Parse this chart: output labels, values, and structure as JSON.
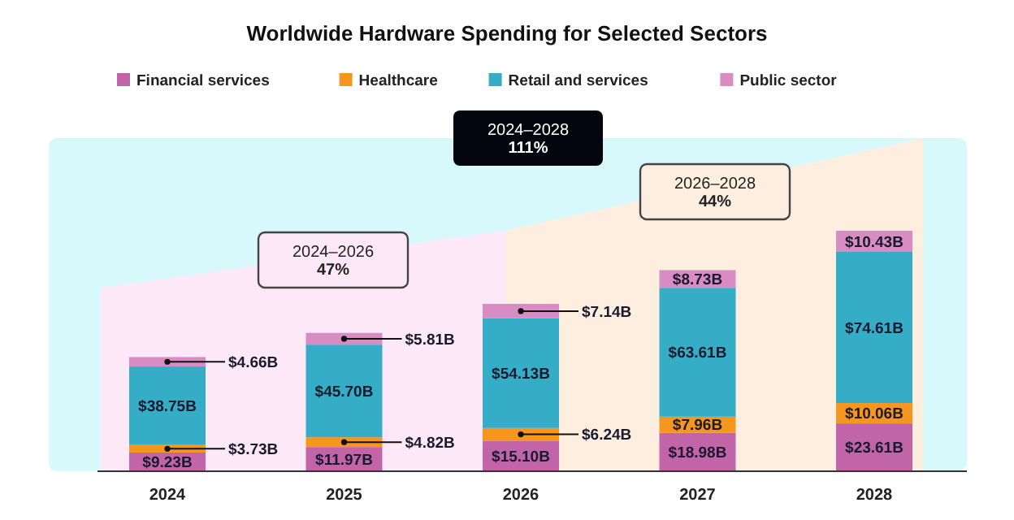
{
  "chart_data": {
    "type": "bar",
    "title": "Worldwide Hardware Spending for Selected Sectors",
    "stacked": true,
    "legend": "top",
    "categories": [
      "2024",
      "2025",
      "2026",
      "2027",
      "2028"
    ],
    "series": [
      {
        "name": "Financial services",
        "color": "#c264a8",
        "values": [
          9.23,
          11.97,
          15.1,
          18.98,
          23.61
        ],
        "value_labels": [
          "$9.23B",
          "$11.97B",
          "$15.10B",
          "$18.98B",
          "$23.61B"
        ]
      },
      {
        "name": "Healthcare",
        "color": "#f7961e",
        "values": [
          3.73,
          4.82,
          6.24,
          7.96,
          10.06
        ],
        "value_labels": [
          "$3.73B",
          "$4.82B",
          "$6.24B",
          "$7.96B",
          "$10.06B"
        ]
      },
      {
        "name": "Retail and services",
        "color": "#35adc6",
        "values": [
          38.75,
          45.7,
          54.13,
          63.61,
          74.61
        ],
        "value_labels": [
          "$38.75B",
          "$45.70B",
          "$54.13B",
          "$63.61B",
          "$74.61B"
        ]
      },
      {
        "name": "Public sector",
        "color": "#d88cc4",
        "values": [
          4.66,
          5.81,
          7.14,
          8.73,
          10.43
        ],
        "value_labels": [
          "$4.66B",
          "$5.81B",
          "$7.14B",
          "$8.73B",
          "$10.43B"
        ]
      }
    ],
    "annotations": [
      "2024–2028\n111%",
      "2024–2026\n47%",
      "2026–2028\n44%"
    ]
  }
}
